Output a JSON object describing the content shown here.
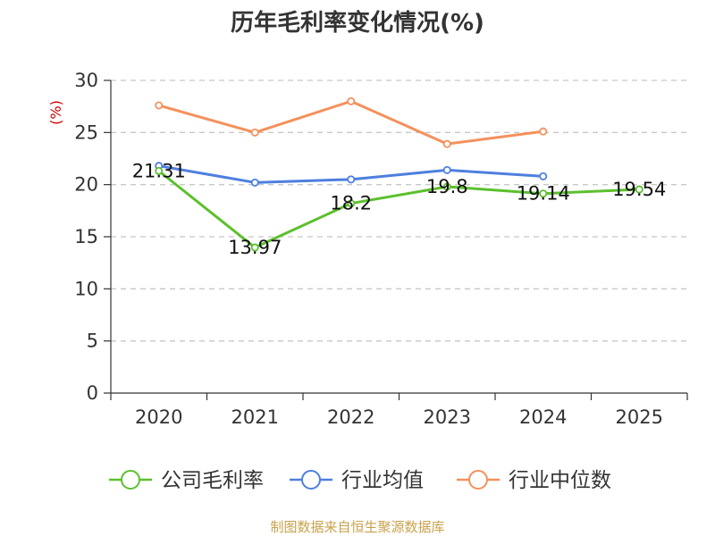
{
  "chart_data": {
    "type": "line",
    "title": "历年毛利率变化情况(%)",
    "ylabel": "(%)",
    "xlabel": "",
    "categories": [
      "2020",
      "2021",
      "2022",
      "2023",
      "2024",
      "2025"
    ],
    "ylim": [
      0,
      30
    ],
    "yticks": [
      0,
      5,
      10,
      15,
      20,
      25,
      30
    ],
    "grid": true,
    "legend_position": "bottom",
    "series": [
      {
        "name": "公司毛利率",
        "color": "#5cc02d",
        "values": [
          21.31,
          13.97,
          18.2,
          19.8,
          19.14,
          19.54
        ],
        "data_labels": [
          "21.31",
          "13.97",
          "18.2",
          "19.8",
          "19.14",
          "19.54"
        ]
      },
      {
        "name": "行业均值",
        "color": "#4e7fdf",
        "values": [
          21.8,
          20.2,
          20.5,
          21.4,
          20.8,
          null
        ]
      },
      {
        "name": "行业中位数",
        "color": "#f4915c",
        "values": [
          27.6,
          25.0,
          28.0,
          23.9,
          25.1,
          null
        ]
      }
    ]
  },
  "source": "制图数据来自恒生聚源数据库"
}
